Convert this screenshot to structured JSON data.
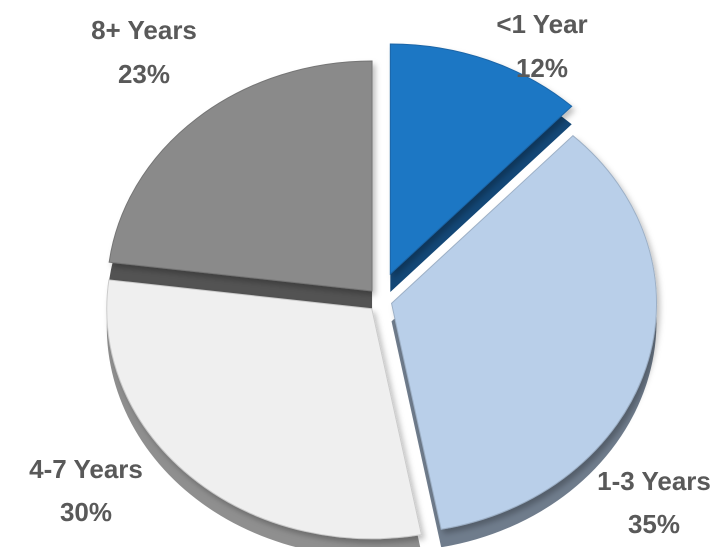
{
  "chart_data": {
    "type": "pie",
    "style": "3d-exploded",
    "slices": [
      {
        "label": "<1 Year",
        "value": 12,
        "value_label": "12%",
        "color": "#1f77c4"
      },
      {
        "label": "1-3 Years",
        "value": 35,
        "value_label": "35%",
        "color": "#b9cfe9"
      },
      {
        "label": "4-7 Years",
        "value": 30,
        "value_label": "30%",
        "color": "#efefef"
      },
      {
        "label": "8+ Years",
        "value": 23,
        "value_label": "23%",
        "color": "#8a8a8a"
      }
    ],
    "label_color": "#595959"
  }
}
